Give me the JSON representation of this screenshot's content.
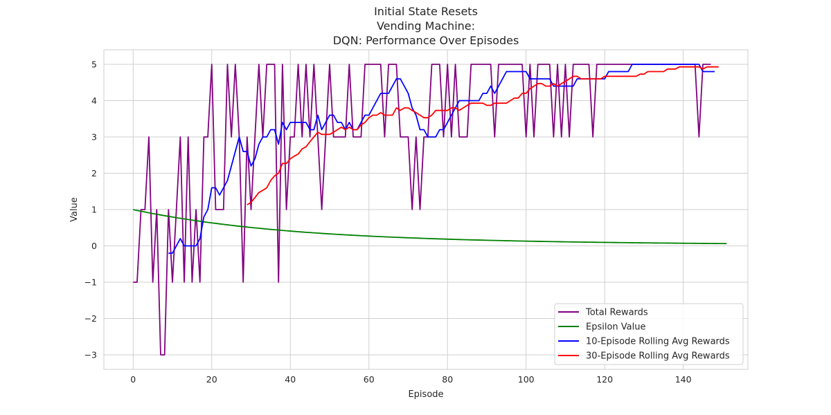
{
  "chart_data": {
    "type": "line",
    "title_lines": [
      "Initial State Resets",
      "Vending Machine:",
      "DQN: Performance Over Episodes"
    ],
    "xlabel": "Episode",
    "ylabel": "Value",
    "xlim": [
      -7.45,
      156.45
    ],
    "ylim": [
      -3.4,
      5.4
    ],
    "xticks": [
      0,
      20,
      40,
      60,
      80,
      100,
      120,
      140
    ],
    "yticks": [
      -3,
      -2,
      -1,
      0,
      1,
      2,
      3,
      4,
      5
    ],
    "xtick_labels": [
      "0",
      "20",
      "40",
      "60",
      "80",
      "100",
      "120",
      "140"
    ],
    "ytick_labels": [
      "−3",
      "−2",
      "−1",
      "0",
      "1",
      "2",
      "3",
      "4",
      "5"
    ],
    "grid": true,
    "legend_position": "lower-right",
    "series": [
      {
        "name": "Total Rewards",
        "color": "#800080",
        "x_start": 0,
        "values": [
          -1,
          -1,
          1,
          1,
          3,
          -1,
          1,
          -3,
          -3,
          1,
          -1,
          1,
          3,
          -1,
          3,
          -1,
          1,
          -1,
          3,
          3,
          5,
          1,
          1,
          1,
          5,
          3,
          5,
          3,
          -1,
          3,
          1,
          3,
          5,
          3,
          5,
          5,
          5,
          -1,
          5,
          1,
          3,
          3,
          5,
          3,
          5,
          3,
          5,
          3,
          1,
          3,
          5,
          3,
          3,
          3,
          3,
          5,
          3,
          3,
          3,
          5,
          5,
          5,
          5,
          5,
          3,
          5,
          5,
          5,
          3,
          3,
          3,
          1,
          3,
          1,
          3,
          3,
          5,
          5,
          5,
          3,
          5,
          3,
          5,
          3,
          3,
          3,
          5,
          5,
          5,
          5,
          5,
          5,
          3,
          5,
          5,
          5,
          5,
          5,
          5,
          5,
          3,
          5,
          3,
          5,
          5,
          5,
          5,
          3,
          5,
          3,
          5,
          3,
          5,
          5,
          5,
          5,
          5,
          3,
          5,
          5,
          5,
          5,
          5,
          5,
          5,
          5,
          5,
          5,
          5,
          5,
          5,
          5,
          5,
          5,
          5,
          5,
          5,
          5,
          5,
          5,
          5,
          5,
          5,
          5,
          3,
          5,
          5,
          5
        ]
      },
      {
        "name": "Epsilon Value",
        "color": "#008000",
        "x_start": 0,
        "values": [
          1.0,
          0.977,
          0.955,
          0.933,
          0.912,
          0.891,
          0.871,
          0.851,
          0.832,
          0.813,
          0.795,
          0.777,
          0.76,
          0.743,
          0.726,
          0.71,
          0.694,
          0.678,
          0.663,
          0.648,
          0.634,
          0.62,
          0.606,
          0.593,
          0.58,
          0.567,
          0.554,
          0.542,
          0.53,
          0.518,
          0.507,
          0.496,
          0.485,
          0.475,
          0.464,
          0.454,
          0.445,
          0.435,
          0.426,
          0.417,
          0.408,
          0.399,
          0.391,
          0.382,
          0.374,
          0.367,
          0.359,
          0.352,
          0.344,
          0.337,
          0.331,
          0.324,
          0.317,
          0.311,
          0.305,
          0.299,
          0.293,
          0.287,
          0.281,
          0.276,
          0.27,
          0.265,
          0.26,
          0.255,
          0.25,
          0.245,
          0.241,
          0.236,
          0.232,
          0.227,
          0.223,
          0.219,
          0.215,
          0.211,
          0.207,
          0.203,
          0.199,
          0.196,
          0.192,
          0.189,
          0.185,
          0.182,
          0.179,
          0.175,
          0.172,
          0.169,
          0.166,
          0.163,
          0.161,
          0.158,
          0.155,
          0.152,
          0.15,
          0.147,
          0.145,
          0.142,
          0.14,
          0.138,
          0.135,
          0.133,
          0.131,
          0.129,
          0.127,
          0.125,
          0.123,
          0.121,
          0.119,
          0.117,
          0.115,
          0.113,
          0.112,
          0.11,
          0.108,
          0.107,
          0.105,
          0.104,
          0.102,
          0.101,
          0.099,
          0.098,
          0.096,
          0.095,
          0.094,
          0.092,
          0.091,
          0.09,
          0.088,
          0.087,
          0.086,
          0.085,
          0.084,
          0.083,
          0.081,
          0.08,
          0.079,
          0.078,
          0.077,
          0.076,
          0.075,
          0.074,
          0.073,
          0.072,
          0.071,
          0.07,
          0.069,
          0.068,
          0.068,
          0.067,
          0.066,
          0.065,
          0.064,
          0.063
        ]
      },
      {
        "name": "10-Episode Rolling Avg Rewards",
        "color": "#0000ff",
        "x_start": 9,
        "values": [
          -0.2,
          -0.2,
          0.0,
          0.2,
          0.0,
          0.0,
          0.0,
          0.0,
          0.2,
          0.8,
          1.0,
          1.6,
          1.6,
          1.4,
          1.6,
          1.8,
          2.2,
          2.6,
          3.0,
          2.6,
          2.6,
          2.2,
          2.4,
          2.8,
          3.0,
          3.0,
          3.2,
          3.2,
          2.8,
          3.4,
          3.2,
          3.4,
          3.4,
          3.4,
          3.4,
          3.4,
          3.2,
          3.2,
          3.6,
          3.2,
          3.4,
          3.6,
          3.6,
          3.4,
          3.4,
          3.2,
          3.4,
          3.2,
          3.2,
          3.4,
          3.6,
          3.6,
          3.8,
          4.0,
          4.2,
          4.2,
          4.2,
          4.4,
          4.6,
          4.6,
          4.4,
          4.2,
          3.8,
          3.6,
          3.2,
          3.2,
          3.0,
          3.0,
          3.0,
          3.2,
          3.2,
          3.4,
          3.6,
          3.8,
          4.0,
          4.0,
          4.0,
          4.0,
          4.0,
          4.0,
          4.2,
          4.2,
          4.4,
          4.2,
          4.4,
          4.6,
          4.8,
          4.8,
          4.8,
          4.8,
          4.8,
          4.8,
          4.6,
          4.6,
          4.6,
          4.6,
          4.6,
          4.6,
          4.4,
          4.4,
          4.4,
          4.4,
          4.4,
          4.4,
          4.6,
          4.6,
          4.6,
          4.6,
          4.6,
          4.6,
          4.6,
          4.6,
          4.8,
          4.8,
          4.8,
          4.8,
          4.8,
          4.8,
          5.0,
          5.0,
          5.0,
          5.0,
          5.0,
          5.0,
          5.0,
          5.0,
          5.0,
          5.0,
          5.0,
          5.0,
          5.0,
          5.0,
          5.0,
          5.0,
          5.0,
          5.0,
          4.8,
          4.8,
          4.8,
          4.8
        ]
      },
      {
        "name": "30-Episode Rolling Avg Rewards",
        "color": "#ff0000",
        "x_start": 29,
        "values": [
          1.13,
          1.2,
          1.33,
          1.47,
          1.53,
          1.6,
          1.8,
          1.93,
          2.0,
          2.27,
          2.27,
          2.4,
          2.47,
          2.53,
          2.67,
          2.73,
          2.87,
          3.0,
          3.13,
          3.07,
          3.07,
          3.07,
          3.13,
          3.2,
          3.27,
          3.2,
          3.27,
          3.2,
          3.2,
          3.33,
          3.4,
          3.53,
          3.6,
          3.6,
          3.67,
          3.6,
          3.6,
          3.6,
          3.8,
          3.73,
          3.8,
          3.8,
          3.73,
          3.67,
          3.6,
          3.53,
          3.53,
          3.6,
          3.73,
          3.73,
          3.73,
          3.73,
          3.8,
          3.8,
          3.73,
          3.8,
          3.87,
          3.93,
          3.93,
          3.93,
          3.93,
          3.87,
          3.87,
          3.93,
          3.93,
          3.93,
          3.93,
          4.0,
          4.07,
          4.07,
          4.2,
          4.2,
          4.33,
          4.4,
          4.47,
          4.47,
          4.4,
          4.4,
          4.47,
          4.4,
          4.47,
          4.53,
          4.6,
          4.67,
          4.67,
          4.6,
          4.6,
          4.6,
          4.6,
          4.6,
          4.6,
          4.67,
          4.67,
          4.67,
          4.67,
          4.67,
          4.67,
          4.67,
          4.67,
          4.67,
          4.73,
          4.73,
          4.8,
          4.8,
          4.8,
          4.8,
          4.8,
          4.87,
          4.87,
          4.87,
          4.93,
          4.93,
          4.93,
          4.93,
          4.93,
          4.93,
          4.87,
          4.93,
          4.93,
          4.93,
          4.93
        ]
      }
    ]
  }
}
